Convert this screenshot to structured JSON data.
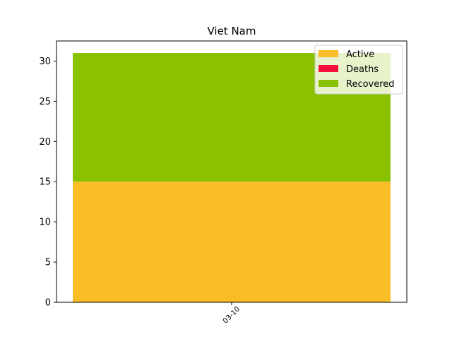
{
  "chart_data": {
    "type": "bar",
    "title": "Viet Nam",
    "xlabel": "",
    "ylabel": "",
    "categories": [
      "03-10"
    ],
    "stacked": true,
    "series": [
      {
        "name": "Active",
        "values": [
          15
        ],
        "color": "#f9bd28"
      },
      {
        "name": "Deaths",
        "values": [
          0
        ],
        "color": "#f50f3f"
      },
      {
        "name": "Recovered",
        "values": [
          16
        ],
        "color": "#8ac200"
      }
    ],
    "ylim": [
      0,
      32.5
    ],
    "yticks": [
      0,
      5,
      10,
      15,
      20,
      25,
      30
    ],
    "legend_position": "top-right",
    "grid": false
  }
}
